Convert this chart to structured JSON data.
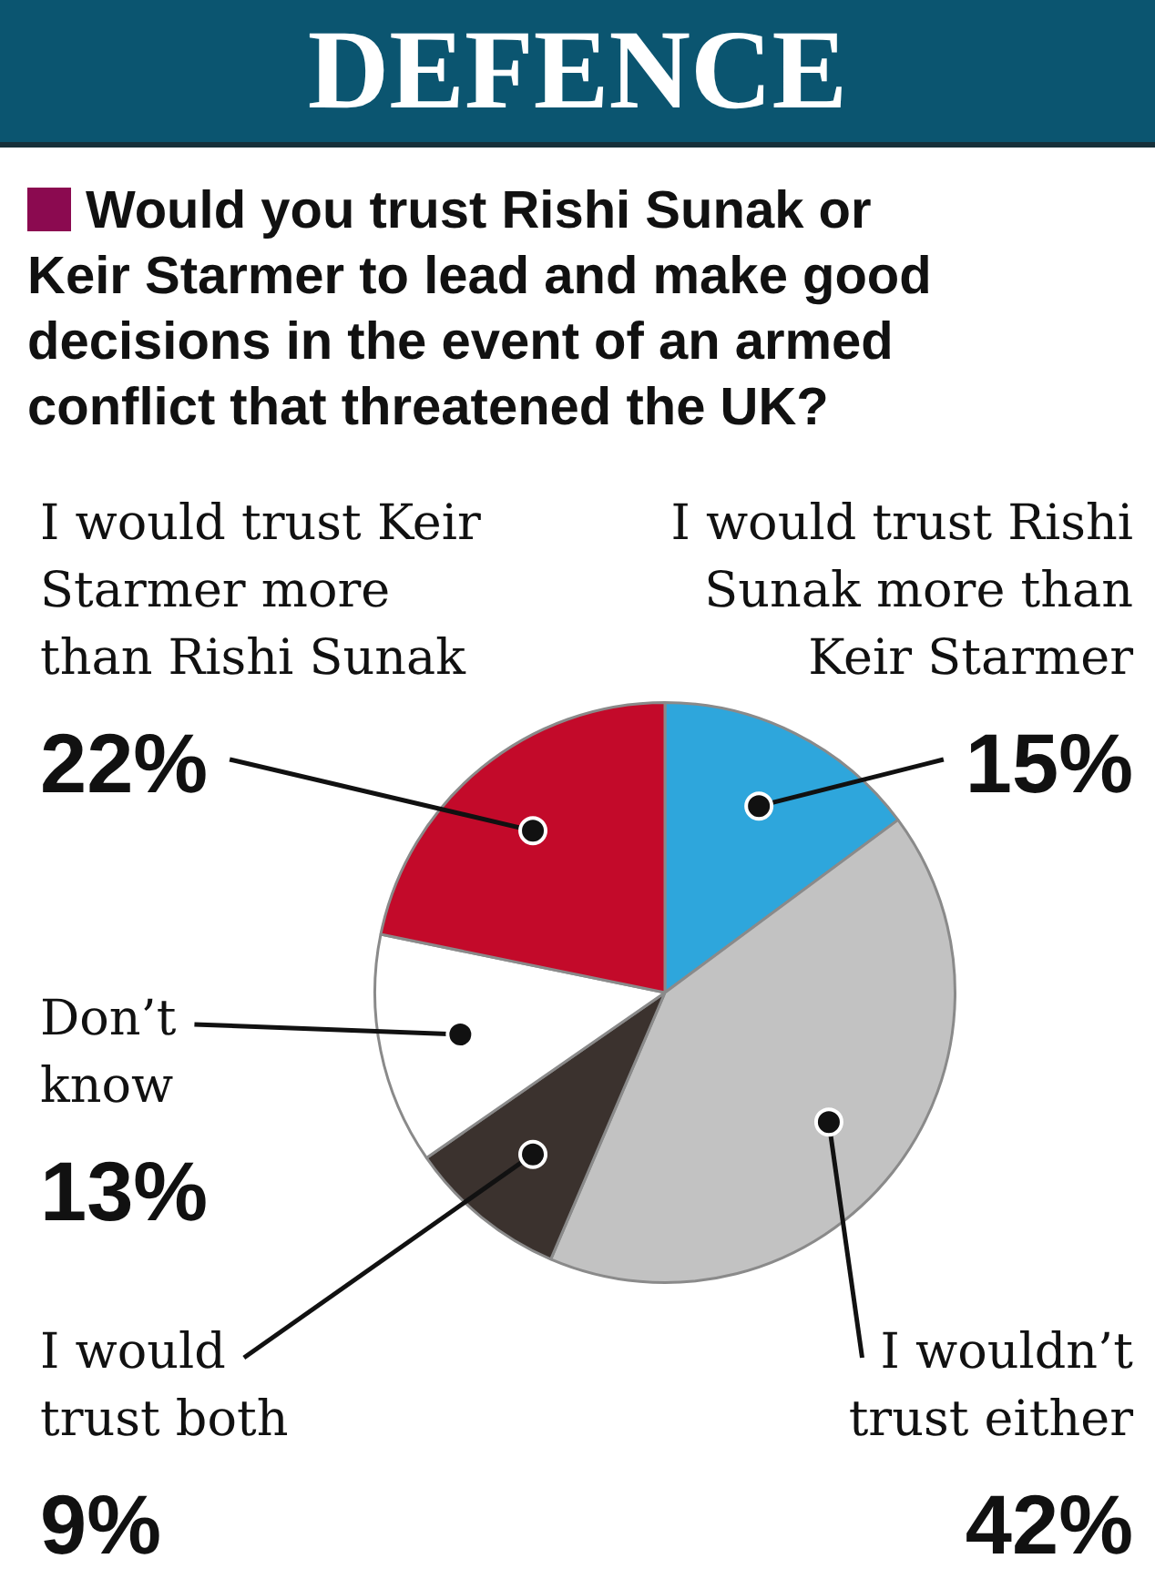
{
  "chart_data": {
    "type": "pie",
    "title": "DEFENCE",
    "subtitle": "Would you trust Rishi Sunak or Keir Starmer to lead and make good decisions in the event of an armed conflict that threatened the UK?",
    "categories": [
      "I would trust Rishi Sunak more than Keir Starmer",
      "I wouldn’t trust either",
      "I would trust both",
      "Don’t know",
      "I would trust Keir Starmer more than Rishi Sunak"
    ],
    "values": [
      15,
      42,
      9,
      13,
      22
    ],
    "colors": [
      "#2ea6dc",
      "#c2c2c2",
      "#3b322e",
      "#ffffff",
      "#c30a2a"
    ],
    "value_labels": [
      "15%",
      "42%",
      "9%",
      "13%",
      "22%"
    ]
  }
}
